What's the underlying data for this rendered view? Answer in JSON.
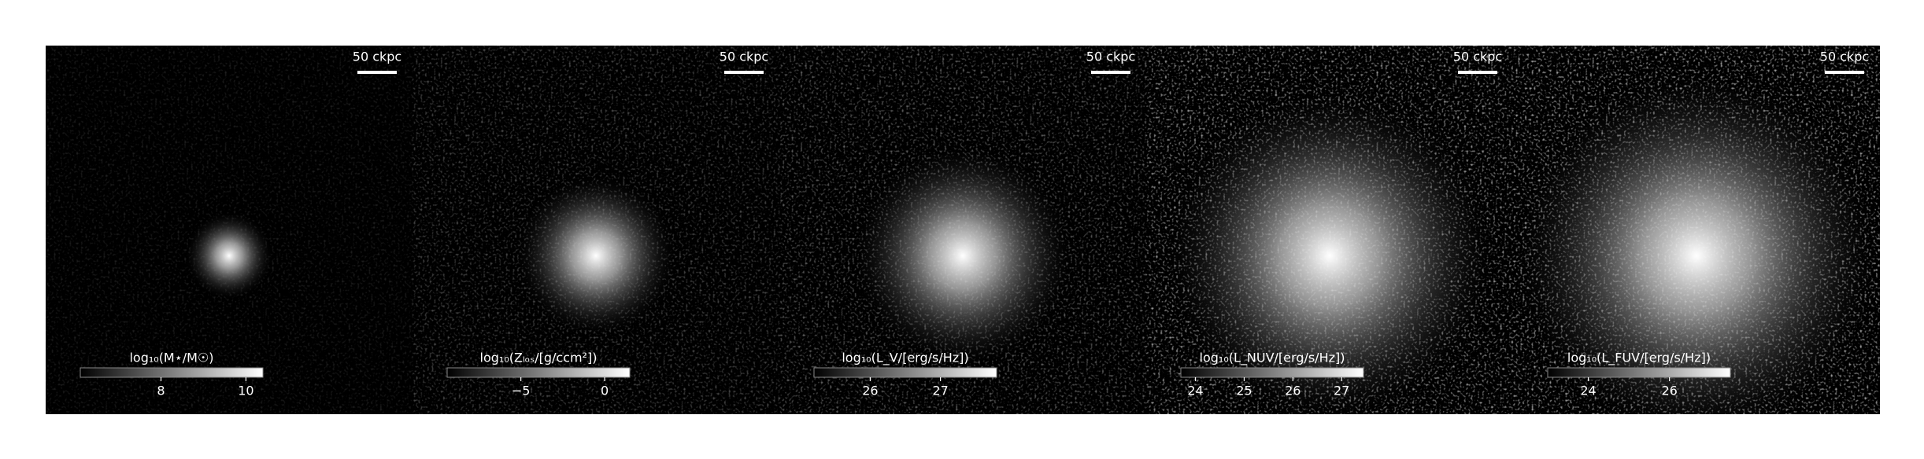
{
  "chart_data": [
    {
      "type": "image",
      "colorbar_label": "log₁₀(M⋆/M☉)",
      "clim": [
        6.1,
        10.4
      ],
      "cticks": [
        8,
        10
      ],
      "scale_bar_label": "50 ckpc"
    },
    {
      "type": "image",
      "colorbar_label": "log₁₀(Zₗₒₛ/[g/ccm²])",
      "clim": [
        -9.4,
        1.5
      ],
      "cticks": [
        {
          "value": -5,
          "label": "−5"
        },
        0
      ],
      "scale_bar_label": "50 ckpc"
    },
    {
      "type": "image",
      "colorbar_label": "log₁₀(L_V/[erg/s/Hz])",
      "clim": [
        25.2,
        27.8
      ],
      "cticks": [
        26,
        27
      ],
      "scale_bar_label": "50 ckpc"
    },
    {
      "type": "image",
      "colorbar_label": "log₁₀(L_NUV/[erg/s/Hz])",
      "clim": [
        23.7,
        27.45
      ],
      "cticks": [
        24,
        25,
        26,
        27
      ],
      "scale_bar_label": "50 ckpc"
    },
    {
      "type": "image",
      "colorbar_label": "log₁₀(L_FUV/[erg/s/Hz])",
      "clim": [
        23.0,
        27.5
      ],
      "cticks": [
        24,
        26
      ],
      "scale_bar_label": "50 ckpc"
    }
  ]
}
